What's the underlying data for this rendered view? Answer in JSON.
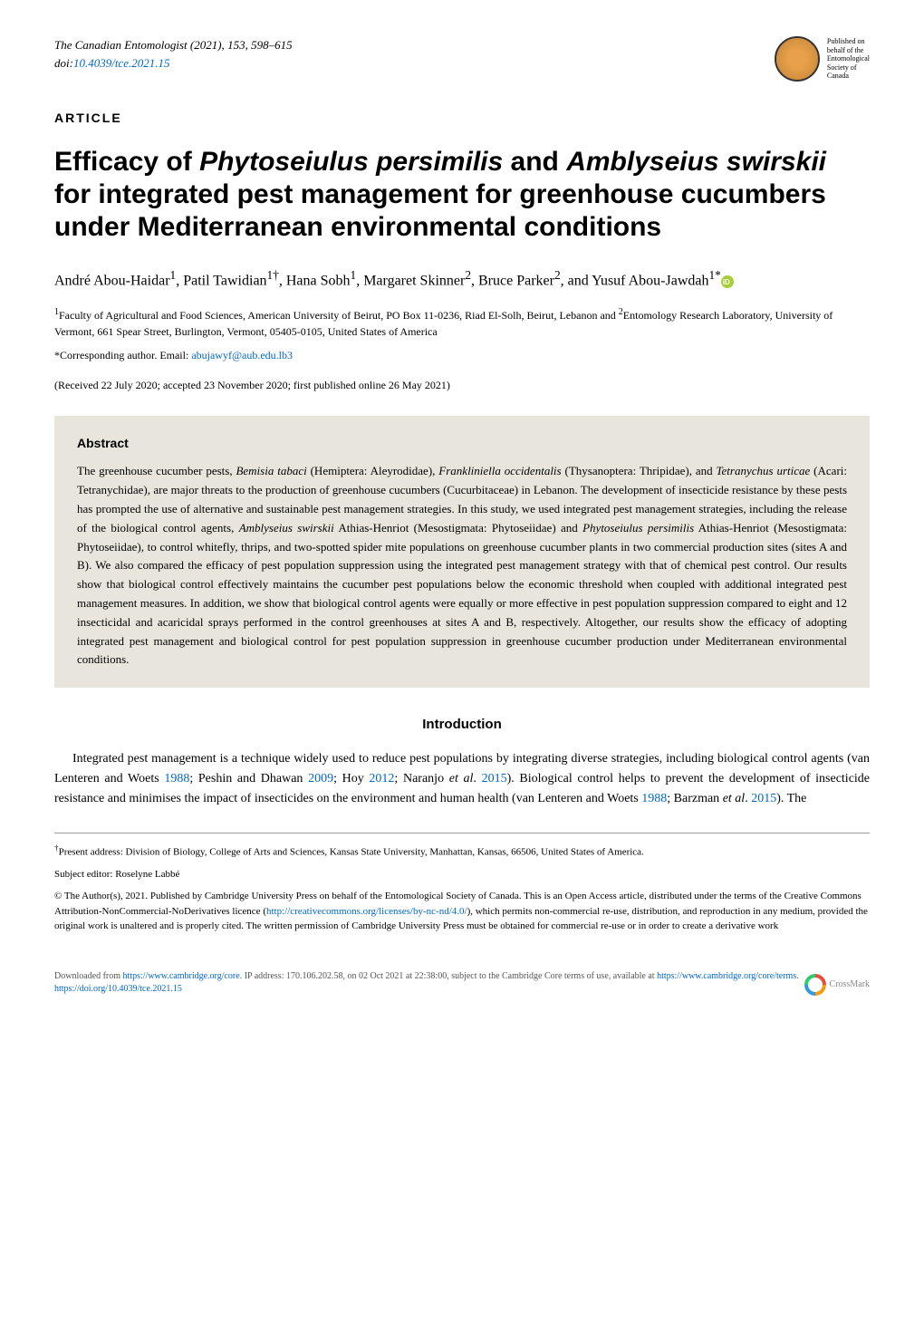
{
  "journal": {
    "name": "The Canadian Entomologist",
    "year": "2021",
    "volume": "153",
    "pages": "598–615",
    "doi_prefix": "doi:",
    "doi": "10.4039/tce.2021.15"
  },
  "publisher": {
    "line1": "Published on",
    "line2": "behalf of the",
    "line3": "Entomological",
    "line4": "Society of",
    "line5": "Canada"
  },
  "article_label": "ARTICLE",
  "title": {
    "part1": "Efficacy of ",
    "species1": "Phytoseiulus persimilis",
    "part2": " and ",
    "species2": "Amblyseius swirskii",
    "part3": " for integrated pest management for greenhouse cucumbers under Mediterranean environmental conditions"
  },
  "authors": {
    "a1": "André Abou-Haidar",
    "a1_sup": "1",
    "a2": "Patil Tawidian",
    "a2_sup": "1†",
    "a3": "Hana Sobh",
    "a3_sup": "1",
    "a4": "Margaret Skinner",
    "a4_sup": "2",
    "a5": "Bruce Parker",
    "a5_sup": "2",
    "a6": "Yusuf Abou-Jawdah",
    "a6_sup": "1*"
  },
  "affiliations": {
    "aff1_sup": "1",
    "aff1": "Faculty of Agricultural and Food Sciences, American University of Beirut, PO Box 11-0236, Riad El-Solh, Beirut, Lebanon",
    "and": " and ",
    "aff2_sup": "2",
    "aff2": "Entomology Research Laboratory, University of Vermont, 661 Spear Street, Burlington, Vermont, 05405-0105, United States of America"
  },
  "corresponding": {
    "label": "*Corresponding author. Email: ",
    "email": "abujawyf@aub.edu.lb3"
  },
  "dates": "(Received 22 July 2020; accepted 23 November 2020; first published online 26 May 2021)",
  "abstract": {
    "label": "Abstract",
    "text_parts": {
      "p1": "The greenhouse cucumber pests, ",
      "s1": "Bemisia tabaci",
      "p2": " (Hemiptera: Aleyrodidae), ",
      "s2": "Frankliniella occidentalis",
      "p3": " (Thysanoptera: Thripidae), and ",
      "s3": "Tetranychus urticae",
      "p4": " (Acari: Tetranychidae), are major threats to the production of greenhouse cucumbers (Cucurbitaceae) in Lebanon. The development of insecticide resistance by these pests has prompted the use of alternative and sustainable pest management strategies. In this study, we used integrated pest management strategies, including the release of the biological control agents, ",
      "s4": "Amblyseius swirskii",
      "p5": " Athias-Henriot (Mesostigmata: Phytoseiidae) and ",
      "s5": "Phytoseiulus persimilis",
      "p6": " Athias-Henriot (Mesostigmata: Phytoseiidae), to control whitefly, thrips, and two-spotted spider mite populations on greenhouse cucumber plants in two commercial production sites (sites A and B). We also compared the efficacy of pest population suppression using the integrated pest management strategy with that of chemical pest control. Our results show that biological control effectively maintains the cucumber pest populations below the economic threshold when coupled with additional integrated pest management measures. In addition, we show that biological control agents were equally or more effective in pest population suppression compared to eight and 12 insecticidal and acaricidal sprays performed in the control greenhouses at sites A and B, respectively. Altogether, our results show the efficacy of adopting integrated pest management and biological control for pest population suppression in greenhouse cucumber production under Mediterranean environmental conditions."
    }
  },
  "introduction": {
    "heading": "Introduction",
    "body_parts": {
      "p1": "Integrated pest management is a technique widely used to reduce pest populations by integrating diverse strategies, including biological control agents (van Lenteren and Woets ",
      "r1": "1988",
      "p2": "; Peshin and Dhawan ",
      "r2": "2009",
      "p3": "; Hoy ",
      "r3": "2012",
      "p4": "; Naranjo ",
      "s1": "et al",
      "p5": ". ",
      "r4": "2015",
      "p6": "). Biological control helps to prevent the development of insecticide resistance and minimises the impact of insecticides on the environment and human health (van Lenteren and Woets ",
      "r5": "1988",
      "p7": "; Barzman ",
      "s2": "et al",
      "p8": ". ",
      "r6": "2015",
      "p9": "). The"
    }
  },
  "footnotes": {
    "fn1_sup": "†",
    "fn1": "Present address: Division of Biology, College of Arts and Sciences, Kansas State University, Manhattan, Kansas, 66506, United States of America.",
    "fn2_label": "Subject editor: ",
    "fn2": "Roselyne Labbé",
    "copyright_p1": "© The Author(s), 2021. Published by Cambridge University Press on behalf of the Entomological Society of Canada. This is an Open Access article, distributed under the terms of the Creative Commons Attribution-NonCommercial-NoDerivatives licence (",
    "copyright_link1": "http://creativecommons.org/licenses/by-nc-nd/4.0/",
    "copyright_p2": "), which permits non-commercial re-use, distribution, and reproduction in any medium, provided the original work is unaltered and is properly cited. The written permission of Cambridge University Press must be obtained for commercial re-use or in order to create a derivative work"
  },
  "bottom": {
    "download_p1": "Downloaded from ",
    "download_link1": "https://www.cambridge.org/core",
    "download_p2": ". IP address: 170.106.202.58, on 02 Oct 2021 at 22:38:00, subject to the Cambridge Core terms of use, available at ",
    "download_link2": "https://www.cambridge.org/core/terms",
    "download_p3": ". ",
    "download_link3": "https://doi.org/10.4039/tce.2021.15",
    "crossmark": "CrossMark"
  }
}
